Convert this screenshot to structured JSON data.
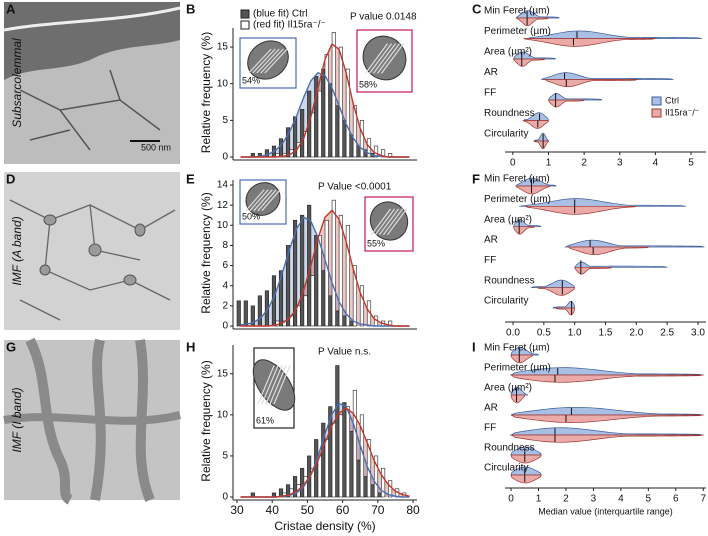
{
  "panel_letters": [
    "A",
    "B",
    "C",
    "D",
    "E",
    "F",
    "G",
    "H",
    "I"
  ],
  "images": [
    {
      "label": "Subsarcolemmal",
      "scale_bar": "500 nm"
    },
    {
      "label": "IMF (A band)"
    },
    {
      "label": "IMF (I band)"
    }
  ],
  "chart_data": [
    {
      "type": "histogram",
      "ylabel": "Relative frequency (%)",
      "annotation": "P value 0.0148",
      "legend": true,
      "bins": [
        30,
        32,
        34,
        36,
        38,
        40,
        42,
        44,
        46,
        48,
        50,
        52,
        54,
        56,
        58,
        60,
        62,
        64,
        66,
        68,
        70,
        72,
        74,
        76,
        78,
        80
      ],
      "x": [
        31,
        33,
        35,
        37,
        39,
        41,
        43,
        45,
        47,
        49,
        51,
        53,
        55,
        57,
        59,
        61,
        63,
        65,
        67,
        69,
        71,
        73,
        75,
        77,
        79
      ],
      "xlim": [
        30,
        80
      ],
      "ylim": [
        0,
        17.6
      ],
      "yticks": [
        0,
        5,
        10,
        15
      ],
      "series": [
        {
          "name": "(blue fit) Ctrl",
          "color": "#555555",
          "fit_color": "#4a6fb5",
          "values": [
            0,
            0,
            0.5,
            0.5,
            1,
            1.5,
            2.5,
            4,
            5.5,
            6.5,
            9,
            11,
            12,
            10,
            7,
            5,
            3,
            1.5,
            1,
            0.5,
            0,
            0,
            0,
            0,
            0
          ],
          "fit": [
            0,
            0,
            0,
            0.1,
            0.4,
            0.9,
            1.9,
            3.5,
            5.7,
            8.2,
            10.4,
            11.5,
            11.1,
            9.4,
            7.0,
            4.5,
            2.6,
            1.3,
            0.6,
            0.2,
            0.1,
            0,
            0,
            0,
            0
          ]
        },
        {
          "name": "(red fit) Il15ra⁻/⁻",
          "color": "#ffffff",
          "fit_color": "#c0392b",
          "values": [
            0,
            0,
            0,
            0,
            0,
            0.5,
            0.5,
            1,
            2,
            3.5,
            6,
            9,
            14,
            17,
            15,
            12,
            7,
            5,
            2.5,
            1.5,
            1,
            0.5,
            0,
            0,
            0
          ],
          "fit": [
            0,
            0,
            0,
            0,
            0,
            0,
            0.1,
            0.3,
            1.0,
            2.6,
            5.5,
            9.4,
            13.3,
            15.4,
            14.7,
            11.5,
            7.3,
            3.9,
            1.7,
            0.6,
            0.2,
            0,
            0,
            0,
            0
          ]
        }
      ],
      "insets": [
        {
          "label": "54%",
          "color": "#4a6fb5"
        },
        {
          "label": "58%",
          "color": "#c2185b"
        }
      ]
    },
    {
      "type": "violin",
      "legend": true,
      "xlim": [
        -0.22,
        5.42
      ],
      "xticks": [
        0,
        1,
        2,
        3,
        4,
        5
      ],
      "categories": [
        "Min Feret (µm)",
        "Perimeter (µm)",
        "Area (µm²)",
        "AR",
        "FF",
        "Roundness",
        "Circularity"
      ],
      "series": [
        {
          "name": "Ctrl",
          "color": "#a9bfe3",
          "stroke": "#3b5b9a",
          "median": [
            0.4,
            1.8,
            0.25,
            1.45,
            1.2,
            0.75,
            0.85
          ],
          "q1": [
            0.3,
            1.3,
            0.15,
            1.3,
            1.1,
            0.6,
            0.8
          ],
          "q3": [
            0.55,
            2.3,
            0.4,
            1.8,
            1.3,
            0.85,
            0.9
          ],
          "min": [
            0.1,
            0.4,
            0.02,
            0.8,
            1.0,
            0.3,
            0.6
          ],
          "max": [
            1.3,
            5.3,
            1.2,
            4.5,
            2.5,
            1.0,
            1.0
          ]
        },
        {
          "name": "Il15ra⁻/⁻",
          "color": "#e9aaa8",
          "stroke": "#a3342c",
          "median": [
            0.4,
            1.7,
            0.25,
            1.5,
            1.2,
            0.7,
            0.85
          ],
          "q1": [
            0.3,
            1.2,
            0.15,
            1.3,
            1.1,
            0.6,
            0.8
          ],
          "q3": [
            0.5,
            2.2,
            0.35,
            1.8,
            1.3,
            0.85,
            0.9
          ],
          "min": [
            0.1,
            0.3,
            0.02,
            0.9,
            1.0,
            0.3,
            0.6
          ],
          "max": [
            1.0,
            4.0,
            0.9,
            3.5,
            2.0,
            1.0,
            1.0
          ]
        }
      ]
    },
    {
      "type": "histogram",
      "ylabel": "Relative frequency (%)",
      "annotation": "P Value <0.0001",
      "bins": [
        30,
        32,
        34,
        36,
        38,
        40,
        42,
        44,
        46,
        48,
        50,
        52,
        54,
        56,
        58,
        60,
        62,
        64,
        66,
        68,
        70,
        72,
        74,
        76,
        78,
        80
      ],
      "x": [
        31,
        33,
        35,
        37,
        39,
        41,
        43,
        45,
        47,
        49,
        51,
        53,
        55,
        57,
        59,
        61,
        63,
        65,
        67,
        69,
        71,
        73,
        75,
        77,
        79
      ],
      "xlim": [
        30,
        80
      ],
      "ylim": [
        0,
        14.5
      ],
      "yticks": [
        0,
        2,
        4,
        6,
        8,
        10,
        12,
        14
      ],
      "series": [
        {
          "color": "#555555",
          "fit_color": "#4a6fb5",
          "values": [
            2.5,
            2.5,
            2,
            3,
            3.5,
            5,
            5.5,
            8,
            10.5,
            11,
            12,
            9,
            5.5,
            3,
            1.5,
            1,
            0.5,
            0,
            0,
            0,
            0,
            0,
            0,
            0,
            0
          ],
          "fit": [
            0.1,
            0.2,
            0.4,
            0.9,
            1.8,
            3.3,
            5.4,
            7.7,
            9.7,
            10.8,
            10.4,
            8.8,
            6.6,
            4.3,
            2.4,
            1.2,
            0.5,
            0.2,
            0.1,
            0,
            0,
            0,
            0,
            0,
            0
          ]
        },
        {
          "color": "#ffffff",
          "fit_color": "#c0392b",
          "values": [
            0,
            0,
            0,
            0,
            0,
            0.5,
            0.5,
            1,
            2,
            3,
            5,
            9,
            10.5,
            12.5,
            11,
            10,
            6,
            4,
            2.5,
            1,
            0.5,
            0.5,
            0,
            0,
            0
          ],
          "fit": [
            0,
            0,
            0,
            0,
            0,
            0.1,
            0.3,
            0.8,
            1.8,
            3.6,
            6.0,
            8.7,
            10.8,
            11.5,
            10.6,
            8.4,
            5.7,
            3.3,
            1.7,
            0.7,
            0.3,
            0.1,
            0,
            0,
            0
          ]
        }
      ],
      "insets": [
        {
          "label": "50%",
          "color": "#4a6fb5"
        },
        {
          "label": "55%",
          "color": "#c2185b"
        }
      ]
    },
    {
      "type": "violin",
      "xlim": [
        -0.13,
        3.13
      ],
      "xticks": [
        {
          "value": 0,
          "label": "0.0"
        },
        {
          "value": 0.5,
          "label": "0.5"
        },
        {
          "value": 1,
          "label": "1.0"
        },
        {
          "value": 1.5,
          "label": "1.5"
        },
        {
          "value": 2,
          "label": "2.0"
        },
        {
          "value": 2.5,
          "label": "2.5"
        },
        {
          "value": 3,
          "label": "3.0"
        }
      ],
      "categories": [
        "Min Feret (µm)",
        "Perimeter (µm)",
        "Area (µm²)",
        "AR",
        "FF",
        "Roundness",
        "Circularity"
      ],
      "series": [
        {
          "color": "#a9bfe3",
          "stroke": "#3b5b9a",
          "median": [
            0.3,
            1.0,
            0.1,
            1.25,
            1.1,
            0.8,
            0.95
          ],
          "q1": [
            0.2,
            0.7,
            0.05,
            1.1,
            1.05,
            0.7,
            0.9
          ],
          "q3": [
            0.4,
            1.3,
            0.15,
            1.45,
            1.15,
            0.9,
            0.97
          ],
          "min": [
            0.05,
            0.1,
            0.01,
            0.85,
            1.0,
            0.3,
            0.65
          ],
          "max": [
            0.7,
            2.8,
            0.45,
            3.1,
            2.5,
            1.0,
            1.0
          ]
        },
        {
          "color": "#e9aaa8",
          "stroke": "#a3342c",
          "median": [
            0.3,
            1.0,
            0.1,
            1.3,
            1.1,
            0.8,
            0.95
          ],
          "q1": [
            0.2,
            0.7,
            0.05,
            1.15,
            1.05,
            0.7,
            0.9
          ],
          "q3": [
            0.4,
            1.3,
            0.15,
            1.5,
            1.15,
            0.9,
            0.97
          ],
          "min": [
            0.05,
            0.2,
            0.01,
            0.9,
            1.0,
            0.4,
            0.7
          ],
          "max": [
            0.6,
            2.0,
            0.35,
            2.2,
            1.6,
            1.0,
            1.0
          ]
        }
      ]
    },
    {
      "type": "histogram",
      "ylabel": "Relative frequency (%)",
      "xlabel": "Cristae density (%)",
      "annotation": "P Value n.s.",
      "bins": [
        30,
        32,
        34,
        36,
        38,
        40,
        42,
        44,
        46,
        48,
        50,
        52,
        54,
        56,
        58,
        60,
        62,
        64,
        66,
        68,
        70,
        72,
        74,
        76,
        78,
        80
      ],
      "x": [
        31,
        33,
        35,
        37,
        39,
        41,
        43,
        45,
        47,
        49,
        51,
        53,
        55,
        57,
        59,
        61,
        63,
        65,
        67,
        69,
        71,
        73,
        75,
        77,
        79
      ],
      "xlim": [
        30,
        80
      ],
      "xticks": [
        30,
        40,
        50,
        60,
        70,
        80
      ],
      "ylim": [
        0,
        18.5
      ],
      "yticks": [
        0,
        5,
        10,
        15
      ],
      "series": [
        {
          "color": "#555555",
          "fit_color": "#4a6fb5",
          "values": [
            0,
            0,
            0.5,
            0,
            0,
            0.5,
            1,
            1.5,
            2.5,
            3.5,
            5,
            7,
            9,
            11,
            16,
            11.5,
            8,
            4.5,
            2.5,
            1.5,
            0.5,
            0,
            0,
            0,
            0
          ],
          "fit": [
            0,
            0,
            0,
            0,
            0,
            0,
            0.1,
            0.2,
            0.5,
            1.3,
            2.7,
            4.9,
            7.7,
            10.1,
            11.4,
            11.0,
            9.0,
            6.3,
            3.7,
            1.9,
            0.8,
            0.3,
            0.1,
            0,
            0
          ]
        },
        {
          "color": "#ffffff",
          "fit_color": "#c0392b",
          "values": [
            0,
            0,
            0,
            0,
            0,
            0,
            0.5,
            1,
            1.5,
            2.5,
            3.5,
            5,
            7,
            9,
            10,
            11,
            13,
            10,
            7,
            5,
            3.5,
            2,
            1,
            0.5,
            0
          ],
          "fit": [
            0,
            0,
            0,
            0,
            0,
            0,
            0.1,
            0.3,
            0.7,
            1.5,
            2.7,
            4.4,
            6.6,
            8.7,
            10.2,
            10.8,
            10.2,
            8.7,
            6.6,
            4.4,
            2.7,
            1.5,
            0.7,
            0.3,
            0.1
          ]
        }
      ],
      "insets": [
        {
          "label": "61%",
          "color": "#222222"
        }
      ]
    },
    {
      "type": "violin",
      "xlabel": "Median value (interquartile range)",
      "xlim": [
        -0.22,
        7.1
      ],
      "xticks": [
        0,
        1,
        2,
        3,
        4,
        5,
        6,
        7
      ],
      "categories": [
        "Min Feret (µm)",
        "Perimeter (µm)",
        "Area (µm²)",
        "AR",
        "FF",
        "Roundness",
        "Circularity"
      ],
      "series": [
        {
          "color": "#a9bfe3",
          "stroke": "#3b5b9a",
          "median": [
            0.3,
            1.7,
            0.2,
            2.2,
            1.6,
            0.5,
            0.5
          ],
          "q1": [
            0.15,
            1.0,
            0.1,
            1.3,
            1.0,
            0.2,
            0.2
          ],
          "q3": [
            0.5,
            3.0,
            0.35,
            3.5,
            2.8,
            0.8,
            0.8
          ],
          "min": [
            0,
            0,
            0,
            0,
            0,
            0,
            0
          ],
          "max": [
            1.0,
            7.0,
            0.6,
            7.0,
            7.0,
            1.1,
            1.1
          ]
        },
        {
          "color": "#e9aaa8",
          "stroke": "#a3342c",
          "median": [
            0.3,
            1.6,
            0.2,
            2.0,
            1.6,
            0.5,
            0.5
          ],
          "q1": [
            0.15,
            1.0,
            0.1,
            1.3,
            1.0,
            0.2,
            0.2
          ],
          "q3": [
            0.5,
            3.0,
            0.35,
            3.5,
            2.8,
            0.8,
            0.8
          ],
          "min": [
            0,
            0,
            0,
            0,
            0,
            0,
            0
          ],
          "max": [
            0.8,
            7.0,
            0.5,
            7.0,
            7.0,
            1.1,
            1.1
          ]
        }
      ]
    }
  ]
}
